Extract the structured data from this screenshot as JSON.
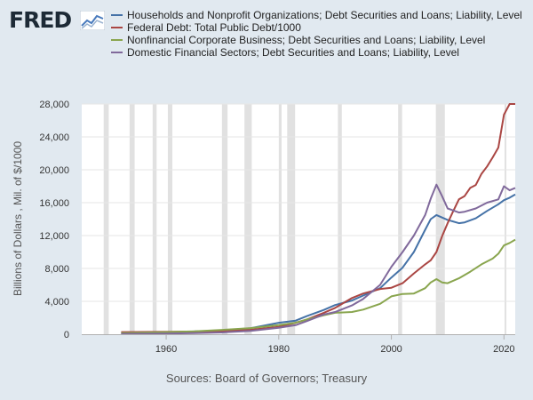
{
  "header": {
    "logo_text": "FRED"
  },
  "footer": {
    "sources": "Sources: Board of Governors; Treasury"
  },
  "chart_data": {
    "type": "line",
    "ylabel": "Billions of Dollars , Mil. of $/1000",
    "xlim": [
      1945,
      2022
    ],
    "ylim": [
      0,
      28000
    ],
    "yticks": [
      0,
      4000,
      8000,
      12000,
      16000,
      20000,
      24000,
      28000
    ],
    "ytick_labels": [
      "0",
      "4,000",
      "8,000",
      "12,000",
      "16,000",
      "20,000",
      "24,000",
      "28,000"
    ],
    "xticks": [
      1960,
      1980,
      2000,
      2020
    ],
    "xtick_labels": [
      "1960",
      "1980",
      "2000",
      "2020"
    ],
    "grid": "horizontal",
    "recessions": [
      [
        1948.9,
        1949.8
      ],
      [
        1953.5,
        1954.4
      ],
      [
        1957.6,
        1958.3
      ],
      [
        1960.3,
        1961.1
      ],
      [
        1969.9,
        1970.9
      ],
      [
        1973.9,
        1975.2
      ],
      [
        1980.0,
        1980.5
      ],
      [
        1981.5,
        1982.9
      ],
      [
        1990.5,
        1991.2
      ],
      [
        2001.2,
        2001.9
      ],
      [
        2007.9,
        2009.5
      ],
      [
        2020.1,
        2020.4
      ]
    ],
    "series": [
      {
        "name": "Households and Nonprofit Organizations; Debt Securities and Loans; Liability, Level",
        "color": "#4572a7",
        "points": [
          [
            1952,
            100
          ],
          [
            1960,
            215
          ],
          [
            1965,
            330
          ],
          [
            1970,
            460
          ],
          [
            1975,
            740
          ],
          [
            1980,
            1400
          ],
          [
            1983,
            1650
          ],
          [
            1985,
            2200
          ],
          [
            1988,
            2950
          ],
          [
            1990,
            3550
          ],
          [
            1993,
            4100
          ],
          [
            1995,
            4700
          ],
          [
            1998,
            5600
          ],
          [
            2000,
            6900
          ],
          [
            2002,
            8100
          ],
          [
            2004,
            10000
          ],
          [
            2006,
            12700
          ],
          [
            2007,
            14000
          ],
          [
            2008,
            14500
          ],
          [
            2009,
            14200
          ],
          [
            2010,
            13900
          ],
          [
            2012,
            13500
          ],
          [
            2013,
            13600
          ],
          [
            2015,
            14100
          ],
          [
            2017,
            15000
          ],
          [
            2019,
            15800
          ],
          [
            2020,
            16300
          ],
          [
            2021,
            16600
          ],
          [
            2022,
            17000
          ]
        ]
      },
      {
        "name": "Federal Debt: Total Public Debt/1000",
        "color": "#aa4643",
        "points": [
          [
            1952,
            260
          ],
          [
            1960,
            290
          ],
          [
            1965,
            320
          ],
          [
            1970,
            380
          ],
          [
            1975,
            540
          ],
          [
            1980,
            900
          ],
          [
            1983,
            1400
          ],
          [
            1985,
            1800
          ],
          [
            1988,
            2600
          ],
          [
            1990,
            3200
          ],
          [
            1993,
            4400
          ],
          [
            1995,
            4950
          ],
          [
            1998,
            5500
          ],
          [
            2000,
            5650
          ],
          [
            2002,
            6200
          ],
          [
            2004,
            7400
          ],
          [
            2006,
            8500
          ],
          [
            2007,
            9000
          ],
          [
            2008,
            10000
          ],
          [
            2009,
            11900
          ],
          [
            2010,
            13500
          ],
          [
            2011,
            15000
          ],
          [
            2012,
            16400
          ],
          [
            2013,
            16800
          ],
          [
            2014,
            17800
          ],
          [
            2015,
            18150
          ],
          [
            2016,
            19500
          ],
          [
            2017,
            20400
          ],
          [
            2018,
            21500
          ],
          [
            2019,
            22700
          ],
          [
            2020,
            26700
          ],
          [
            2021,
            28400
          ],
          [
            2022,
            30000
          ]
        ]
      },
      {
        "name": "Nonfinancial Corporate Business; Debt Securities and Loans; Liability, Level",
        "color": "#89a54e",
        "points": [
          [
            1952,
            150
          ],
          [
            1960,
            260
          ],
          [
            1965,
            360
          ],
          [
            1970,
            530
          ],
          [
            1975,
            750
          ],
          [
            1980,
            1100
          ],
          [
            1983,
            1400
          ],
          [
            1985,
            1800
          ],
          [
            1988,
            2300
          ],
          [
            1990,
            2600
          ],
          [
            1993,
            2700
          ],
          [
            1995,
            3000
          ],
          [
            1998,
            3700
          ],
          [
            2000,
            4600
          ],
          [
            2002,
            4900
          ],
          [
            2004,
            4950
          ],
          [
            2006,
            5600
          ],
          [
            2007,
            6300
          ],
          [
            2008,
            6700
          ],
          [
            2009,
            6300
          ],
          [
            2010,
            6200
          ],
          [
            2012,
            6800
          ],
          [
            2014,
            7600
          ],
          [
            2016,
            8500
          ],
          [
            2018,
            9200
          ],
          [
            2019,
            9800
          ],
          [
            2020,
            10800
          ],
          [
            2021,
            11100
          ],
          [
            2022,
            11500
          ]
        ]
      },
      {
        "name": "Domestic Financial Sectors; Debt Securities and Loans; Liability, Level",
        "color": "#80699b",
        "points": [
          [
            1952,
            40
          ],
          [
            1960,
            90
          ],
          [
            1965,
            140
          ],
          [
            1970,
            220
          ],
          [
            1975,
            400
          ],
          [
            1980,
            780
          ],
          [
            1983,
            1100
          ],
          [
            1985,
            1600
          ],
          [
            1988,
            2400
          ],
          [
            1990,
            2700
          ],
          [
            1993,
            3500
          ],
          [
            1995,
            4300
          ],
          [
            1998,
            6000
          ],
          [
            2000,
            8200
          ],
          [
            2002,
            10000
          ],
          [
            2004,
            12000
          ],
          [
            2006,
            14500
          ],
          [
            2007,
            16500
          ],
          [
            2008,
            18200
          ],
          [
            2009,
            16800
          ],
          [
            2010,
            15300
          ],
          [
            2012,
            14800
          ],
          [
            2013,
            14900
          ],
          [
            2015,
            15300
          ],
          [
            2017,
            16000
          ],
          [
            2019,
            16400
          ],
          [
            2020,
            18000
          ],
          [
            2021,
            17500
          ],
          [
            2022,
            17800
          ]
        ]
      }
    ]
  }
}
